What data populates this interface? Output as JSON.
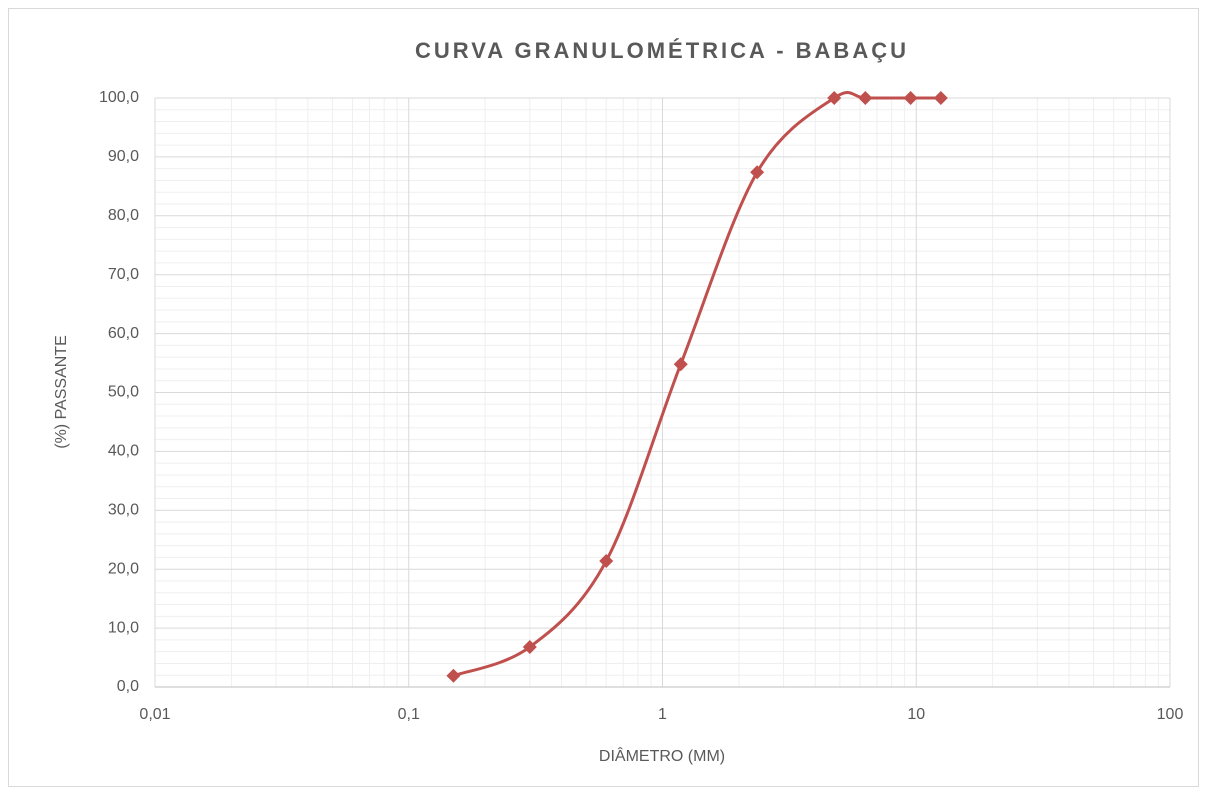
{
  "chart_data": {
    "type": "line",
    "title": "CURVA GRANULOMÉTRICA - BABAÇU",
    "x_label": "DIÂMETRO (MM)",
    "y_label": "(%)  PASSANTE",
    "x": [
      0.15,
      0.3,
      0.6,
      1.18,
      2.36,
      4.75,
      6.3,
      9.5,
      12.5
    ],
    "series": [
      {
        "name": "Babaçu",
        "color": "#c0504d",
        "values": [
          1.9,
          6.8,
          21.4,
          54.8,
          87.4,
          100,
          100,
          100,
          100
        ]
      }
    ],
    "xlim": [
      0.01,
      100
    ],
    "xticks": [
      {
        "value": 0.01,
        "label": "0,01"
      },
      {
        "value": 0.1,
        "label": "0,1"
      },
      1,
      10,
      100
    ],
    "ylim": [
      0,
      100
    ],
    "yticks": [
      {
        "value": 0,
        "label": "0,0"
      },
      {
        "value": 10,
        "label": "10,0"
      },
      {
        "value": 20,
        "label": "20,0"
      },
      {
        "value": 30,
        "label": "30,0"
      },
      {
        "value": 40,
        "label": "40,0"
      },
      {
        "value": 50,
        "label": "50,0"
      },
      {
        "value": 60,
        "label": "60,0"
      },
      {
        "value": 70,
        "label": "70,0"
      },
      {
        "value": 80,
        "label": "80,0"
      },
      {
        "value": 90,
        "label": "90,0"
      },
      {
        "value": 100,
        "label": "100,0"
      }
    ],
    "x_log": true,
    "grid": true,
    "minor_grid": true,
    "smooth": true
  }
}
